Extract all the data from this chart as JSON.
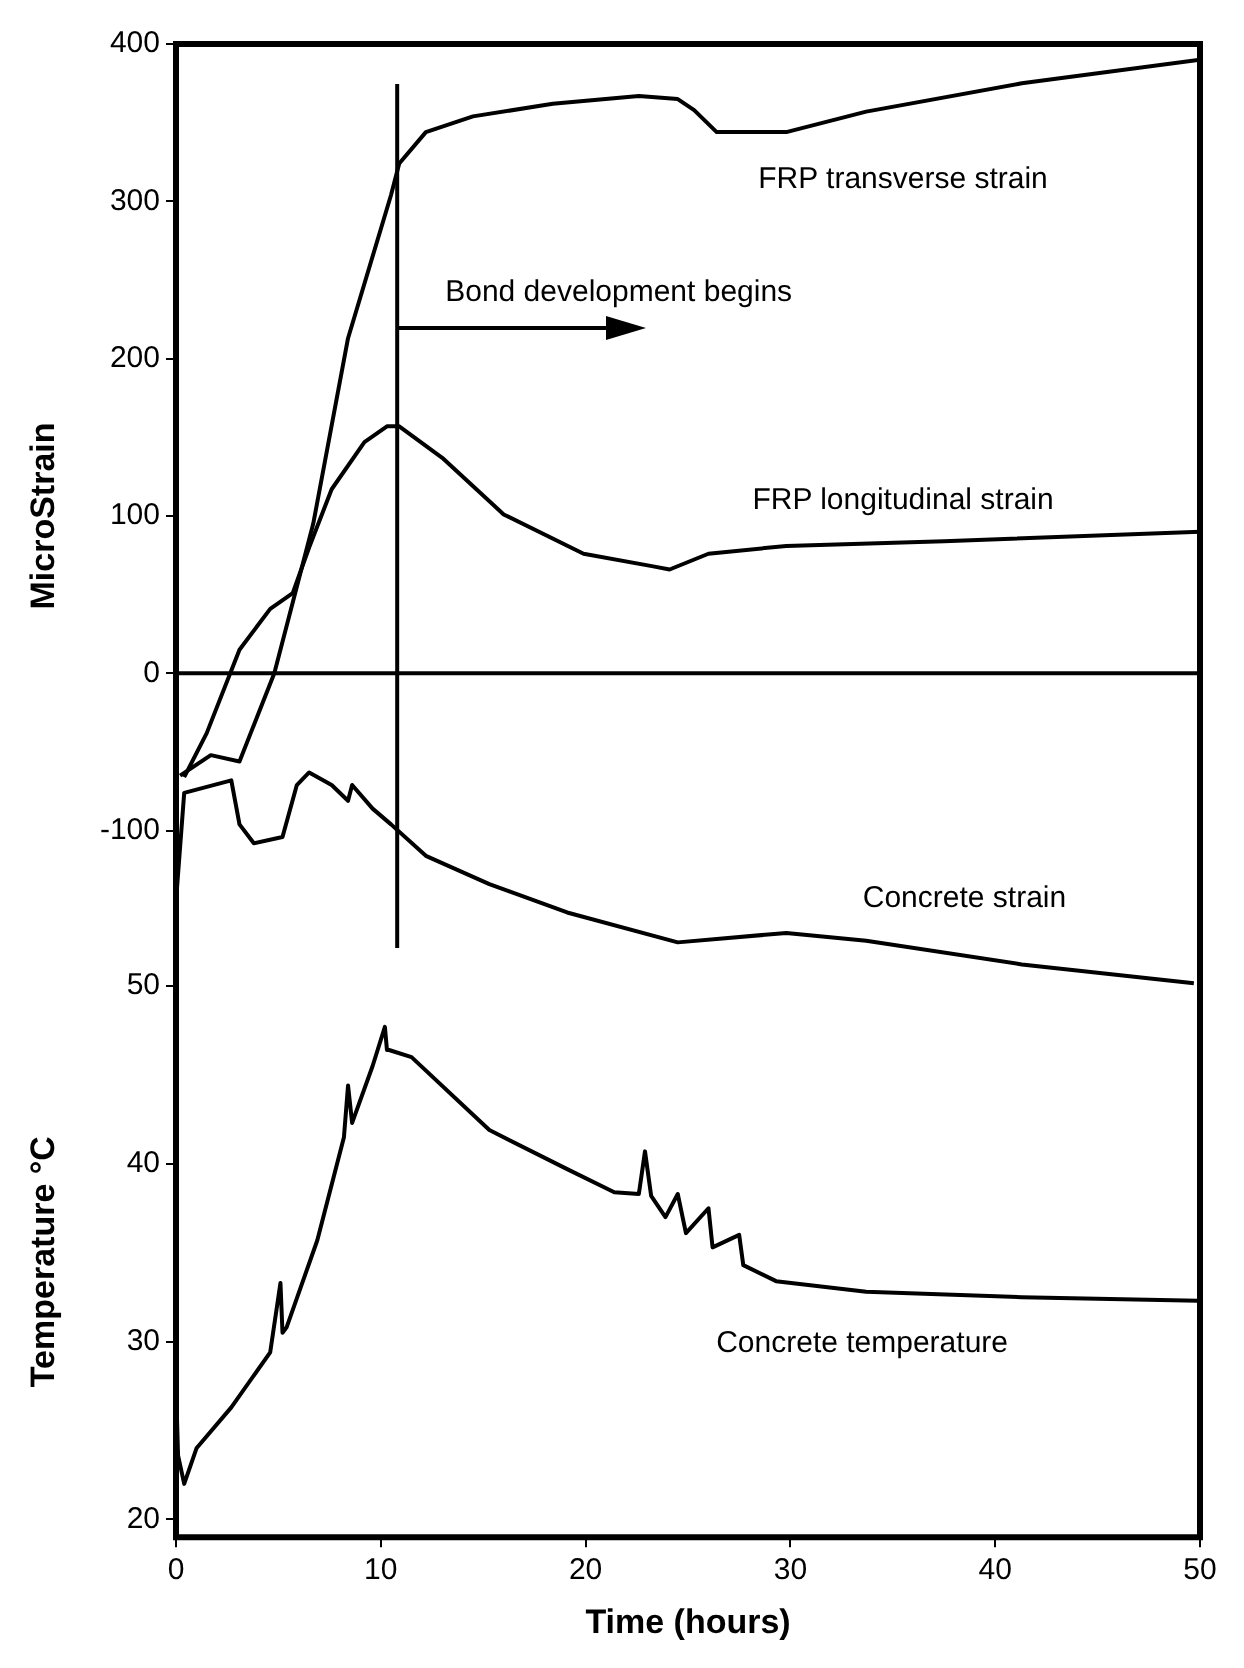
{
  "chart_data": [
    {
      "type": "line",
      "ylabel": "MicroStrain",
      "xlim": [
        0,
        50
      ],
      "xticks": [
        0,
        10,
        20,
        30,
        40,
        50
      ],
      "ylim": [
        -200,
        400
      ],
      "yticks": [
        -100,
        0,
        100,
        200,
        300,
        400
      ],
      "tick_labels": "y",
      "grid": false,
      "legend": false,
      "marker": "none",
      "line_style": "solid",
      "ref_lines": [
        {
          "axis": "y",
          "value": 0,
          "color": "#000000"
        },
        {
          "axis": "x",
          "value": 10.8,
          "color": "#000000"
        }
      ],
      "annotations": [
        {
          "text": "Bond development begins",
          "x": 10.8,
          "y": 219
        }
      ],
      "series": [
        {
          "name": "FRP transverse strain",
          "color": "#000000",
          "x": [
            0.2,
            1.7,
            3.1,
            4.8,
            5.9,
            6.7,
            8.4,
            10.5,
            10.9,
            12.2,
            14.5,
            18.4,
            22.6,
            24.5,
            25.3,
            26.4,
            28.3,
            29.8,
            33.7,
            41.3,
            50
          ],
          "values": [
            -65,
            -52,
            -56,
            0,
            55,
            95,
            213,
            304,
            324,
            344,
            354,
            362,
            367,
            365,
            358,
            344,
            344,
            344,
            357,
            375,
            390
          ]
        },
        {
          "name": "FRP longitudinal strain",
          "color": "#000000",
          "x": [
            0.4,
            1.5,
            3.1,
            4.6,
            5.7,
            6.5,
            7.6,
            9.2,
            10.3,
            10.9,
            13,
            16,
            19.9,
            23.3,
            24.1,
            26,
            29.8,
            37.5,
            50
          ],
          "values": [
            -66,
            -38,
            15,
            41,
            51,
            80,
            117,
            147,
            157,
            157,
            137,
            101,
            76,
            68,
            66,
            76,
            81,
            84,
            90
          ]
        },
        {
          "name": "Concrete strain",
          "color": "#000000",
          "x": [
            0,
            0,
            0.4,
            2.7,
            3.1,
            3.8,
            5.2,
            5.9,
            6.5,
            7.6,
            8.4,
            8.6,
            9.6,
            10.5,
            12.2,
            15.3,
            19.1,
            24.5,
            29.8,
            33.7,
            41.3,
            49.7
          ],
          "values": [
            -80,
            -145,
            -76,
            -68,
            -96,
            -108,
            -104,
            -71,
            -63,
            -71,
            -81,
            -71,
            -86,
            -96,
            -116,
            -134,
            -152,
            -171,
            -165,
            -170,
            -185,
            -197
          ]
        }
      ]
    },
    {
      "type": "line",
      "xlabel": "Time (hours)",
      "ylabel": "Temperature °C",
      "xlim": [
        0,
        50
      ],
      "xticks": [
        0,
        10,
        20,
        30,
        40,
        50
      ],
      "ylim": [
        19,
        50
      ],
      "yticks": [
        20,
        30,
        40,
        50
      ],
      "grid": false,
      "legend": false,
      "marker": "none",
      "line_style": "solid",
      "series": [
        {
          "name": "Concrete temperature",
          "color": "#000000",
          "x": [
            0,
            0.1,
            0.4,
            1,
            2.7,
            4.6,
            5.1,
            5.2,
            5.4,
            6.9,
            8.2,
            8.4,
            8.6,
            9.6,
            10.2,
            10.3,
            10.4,
            11.5,
            15.3,
            19.1,
            21.4,
            22.6,
            22.9,
            23.2,
            23.9,
            24.5,
            24.9,
            26,
            26.2,
            27.5,
            27.7,
            29.3,
            33.7,
            41.3,
            49.9
          ],
          "values": [
            27.6,
            23.6,
            22,
            24,
            26.3,
            29.4,
            33.3,
            30.5,
            30.8,
            35.7,
            41.5,
            44.4,
            42.3,
            45.5,
            47.7,
            46.4,
            46.4,
            46,
            41.9,
            39.7,
            38.4,
            38.3,
            40.7,
            38.2,
            37,
            38.3,
            36.1,
            37.5,
            35.3,
            36,
            34.3,
            33.4,
            32.8,
            32.5,
            32.3
          ]
        }
      ]
    }
  ]
}
